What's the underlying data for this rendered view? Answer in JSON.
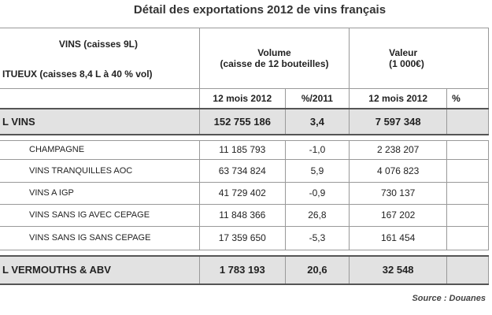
{
  "title": "Détail des exportations 2012 de vins français",
  "header": {
    "left": [
      "VINS (caisses 9L)",
      "ITUEUX (caisses 8,4 L à 40 % vol)"
    ],
    "volume": [
      "Volume",
      "(caisse de 12 bouteilles)"
    ],
    "valeur": [
      "Valeur",
      "(1 000€)"
    ],
    "sub": [
      "12 mois 2012",
      "%/2011",
      "12 mois 2012",
      "%"
    ]
  },
  "rows": [
    [
      "L VINS",
      "152 755 186",
      "3,4",
      "7 597 348"
    ],
    [
      "CHAMPAGNE",
      "11 185 793",
      "-1,0",
      "2 238 207"
    ],
    [
      "VINS TRANQUILLES AOC",
      "63 734 824",
      "5,9",
      "4 076 823"
    ],
    [
      "VINS A IGP",
      "41 729 402",
      "-0,9",
      "730 137"
    ],
    [
      "VINS SANS IG AVEC CEPAGE",
      "11 848 366",
      "26,8",
      "167 202"
    ],
    [
      "VINS SANS IG SANS CEPAGE",
      "17 359 650",
      "-5,3",
      "161 454"
    ],
    [
      "L VERMOUTHS & ABV",
      "1 783 193",
      "20,6",
      "32 548"
    ]
  ],
  "source": "Source : Douanes"
}
